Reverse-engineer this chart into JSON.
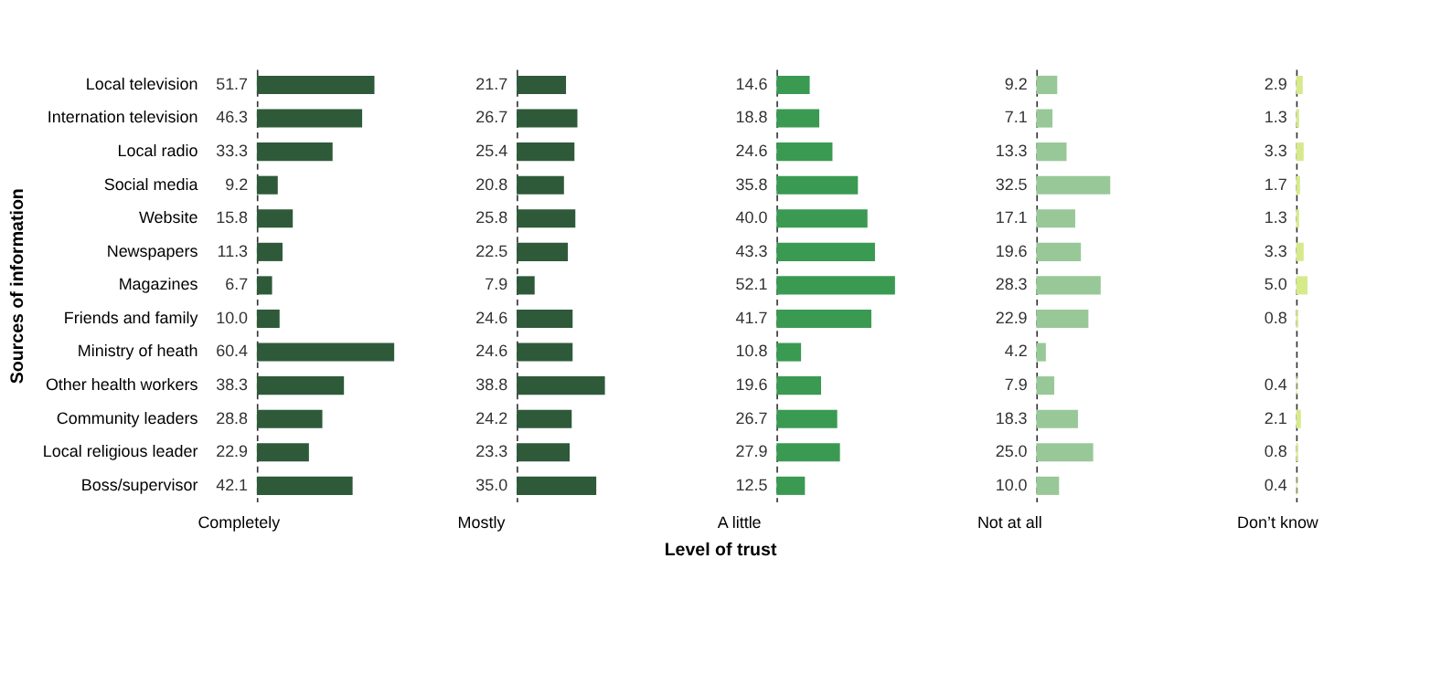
{
  "chart_data": [
    {
      "type": "bar",
      "orientation": "horizontal",
      "xlabel": "Completely",
      "ylabel": "Sources of information",
      "categories": [
        "Local television",
        "Internation television",
        "Local radio",
        "Social media",
        "Website",
        "Newspapers",
        "Magazines",
        "Friends and family",
        "Ministry of heath",
        "Other health workers",
        "Community leaders",
        "Local religious leader",
        "Boss/supervisor"
      ],
      "color": "#2e5a3a",
      "values": [
        51.7,
        46.3,
        33.3,
        9.2,
        15.8,
        11.3,
        6.7,
        10.0,
        60.4,
        38.3,
        28.8,
        22.9,
        42.1
      ],
      "value_labels": [
        "51.7",
        "46.3",
        "33.3",
        "9.2",
        "15.8",
        "11.3",
        "6.7",
        "10.0",
        "60.4",
        "38.3",
        "28.8",
        "22.9",
        "42.1"
      ],
      "tick_labels": "y"
    },
    {
      "type": "bar",
      "orientation": "horizontal",
      "xlabel": "Mostly",
      "categories": [
        "Local television",
        "Internation television",
        "Local radio",
        "Social media",
        "Website",
        "Newspapers",
        "Magazines",
        "Friends and family",
        "Ministry of heath",
        "Other health workers",
        "Community leaders",
        "Local religious leader",
        "Boss/supervisor"
      ],
      "color": "#2e5a3a",
      "values": [
        21.7,
        26.7,
        25.4,
        20.8,
        25.8,
        22.5,
        7.9,
        24.6,
        24.6,
        38.8,
        24.2,
        23.3,
        35.0
      ],
      "value_labels": [
        "21.7",
        "26.7",
        "25.4",
        "20.8",
        "25.8",
        "22.5",
        "7.9",
        "24.6",
        "24.6",
        "38.8",
        "24.2",
        "23.3",
        "35.0"
      ],
      "tick_labels": false
    },
    {
      "type": "bar",
      "orientation": "horizontal",
      "xlabel": "A little",
      "categories": [
        "Local television",
        "Internation television",
        "Local radio",
        "Social media",
        "Website",
        "Newspapers",
        "Magazines",
        "Friends and family",
        "Ministry of heath",
        "Other health workers",
        "Community leaders",
        "Local religious leader",
        "Boss/supervisor"
      ],
      "color": "#3a9a52",
      "values": [
        14.6,
        18.8,
        24.6,
        35.8,
        40.0,
        43.3,
        52.1,
        41.7,
        10.8,
        19.6,
        26.7,
        27.9,
        12.5
      ],
      "value_labels": [
        "14.6",
        "18.8",
        "24.6",
        "35.8",
        "40.0",
        "43.3",
        "52.1",
        "41.7",
        "10.8",
        "19.6",
        "26.7",
        "27.9",
        "12.5"
      ],
      "tick_labels": false,
      "annotations": [
        "Level of trust"
      ]
    },
    {
      "type": "bar",
      "orientation": "horizontal",
      "xlabel": "Not at all",
      "categories": [
        "Local television",
        "Internation television",
        "Local radio",
        "Social media",
        "Website",
        "Newspapers",
        "Magazines",
        "Friends and family",
        "Ministry of heath",
        "Other health workers",
        "Community leaders",
        "Local religious leader",
        "Boss/supervisor"
      ],
      "color": "#98c898",
      "values": [
        9.2,
        7.1,
        13.3,
        32.5,
        17.1,
        19.6,
        28.3,
        22.9,
        4.2,
        7.9,
        18.3,
        25.0,
        10.0
      ],
      "value_labels": [
        "9.2",
        "7.1",
        "13.3",
        "32.5",
        "17.1",
        "19.6",
        "28.3",
        "22.9",
        "4.2",
        "7.9",
        "18.3",
        "25.0",
        "10.0"
      ],
      "tick_labels": false
    },
    {
      "type": "bar",
      "orientation": "horizontal",
      "xlabel": "Don’t know",
      "categories": [
        "Local television",
        "Internation television",
        "Local radio",
        "Social media",
        "Website",
        "Newspapers",
        "Magazines",
        "Friends and family",
        "Ministry of heath",
        "Other health workers",
        "Community leaders",
        "Local religious leader",
        "Boss/supervisor"
      ],
      "color": "#d6ea8c",
      "values": [
        2.9,
        1.3,
        3.3,
        1.7,
        1.3,
        3.3,
        5.0,
        0.8,
        null,
        0.4,
        2.1,
        0.8,
        0.4
      ],
      "value_labels": [
        "2.9",
        "1.3",
        "3.3",
        "1.7",
        "1.3",
        "3.3",
        "5.0",
        "0.8",
        null,
        "0.4",
        "2.1",
        "0.8",
        "0.4"
      ],
      "tick_labels": false
    }
  ]
}
